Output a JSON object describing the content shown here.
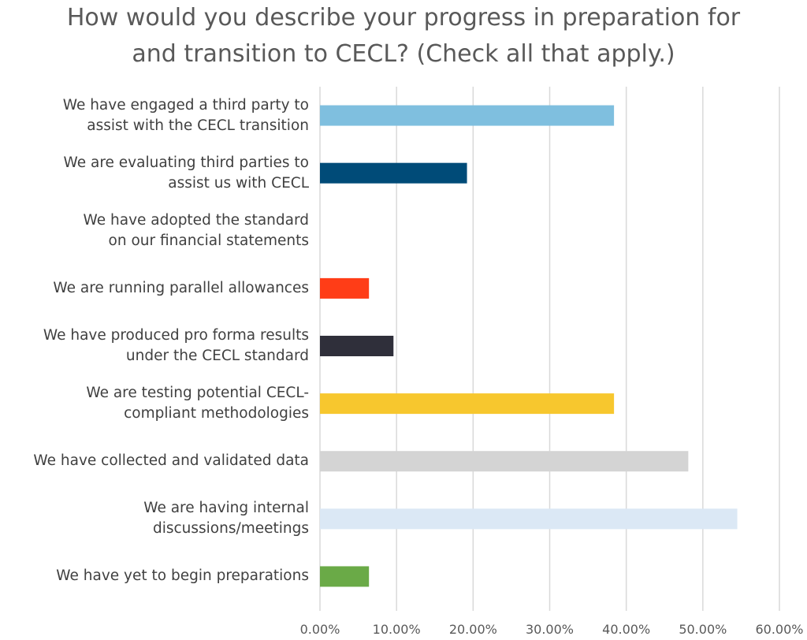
{
  "chart_data": {
    "type": "barh",
    "title": "How would you describe your progress in preparation for\nand transition to CECL? (Check all that apply.)",
    "categories": [
      "We have engaged a third party to\nassist with the CECL transition",
      "We are evaluating third parties to\nassist us with CECL",
      "We have adopted the standard\non our financial statements",
      "We are running parallel allowances",
      "We have produced pro forma results\nunder the CECL standard",
      "We are testing potential CECL-\ncompliant methodologies",
      "We have collected and validated data",
      "We are having internal\ndiscussions/meetings",
      "We have yet to begin preparations"
    ],
    "values": [
      38.4,
      19.2,
      0,
      6.4,
      9.6,
      38.4,
      48.1,
      54.5,
      6.4
    ],
    "colors": [
      "#7fbfdf",
      "#004b78",
      null,
      "#ff3d17",
      "#2f2f3a",
      "#f7c72e",
      "#d4d4d4",
      "#dbe8f5",
      "#6aaa47"
    ],
    "xlim": [
      0,
      60
    ],
    "xticks": [
      {
        "value": 0,
        "label": "0.00%"
      },
      {
        "value": 10,
        "label": "10.00%"
      },
      {
        "value": 20,
        "label": "20.00%"
      },
      {
        "value": 30,
        "label": "30.00%"
      },
      {
        "value": 40,
        "label": "40.00%"
      },
      {
        "value": 50,
        "label": "50.00%"
      },
      {
        "value": 60,
        "label": "60.00%"
      }
    ],
    "grid": true
  }
}
